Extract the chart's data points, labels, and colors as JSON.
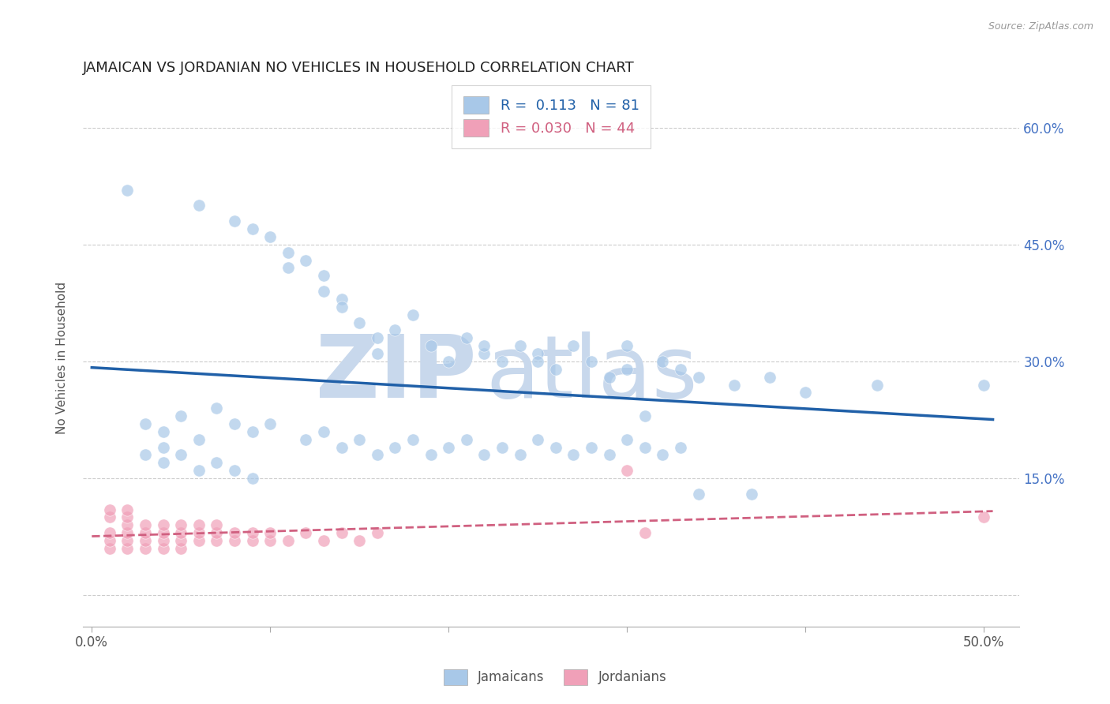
{
  "title": "JAMAICAN VS JORDANIAN NO VEHICLES IN HOUSEHOLD CORRELATION CHART",
  "source_text": "Source: ZipAtlas.com",
  "ylabel": "No Vehicles in Household",
  "xlim": [
    -0.005,
    0.52
  ],
  "ylim": [
    -0.04,
    0.65
  ],
  "y_ticks_right": [
    0.0,
    0.15,
    0.3,
    0.45,
    0.6
  ],
  "y_tick_labels_right": [
    "",
    "15.0%",
    "30.0%",
    "45.0%",
    "60.0%"
  ],
  "x_ticks": [
    0.0,
    0.1,
    0.2,
    0.3,
    0.4,
    0.5
  ],
  "x_tick_labels": [
    "0.0%",
    "",
    "",
    "",
    "",
    "50.0%"
  ],
  "r_jamaican": 0.113,
  "n_jamaican": 81,
  "r_jordanian": 0.03,
  "n_jordanian": 44,
  "color_jamaican": "#A8C8E8",
  "color_jordanian": "#F0A0B8",
  "color_line_jamaican": "#2060A8",
  "color_line_jordanian": "#D06080",
  "legend_label_jamaican": "Jamaicans",
  "legend_label_jordanian": "Jordanians",
  "watermark_zip": "ZIP",
  "watermark_atlas": "atlas",
  "watermark_color": "#C8D8EC",
  "background_color": "#FFFFFF",
  "grid_color": "#CCCCCC",
  "jamaican_x": [
    0.02,
    0.06,
    0.08,
    0.09,
    0.1,
    0.11,
    0.11,
    0.12,
    0.13,
    0.13,
    0.14,
    0.14,
    0.15,
    0.16,
    0.16,
    0.17,
    0.18,
    0.19,
    0.2,
    0.21,
    0.22,
    0.22,
    0.23,
    0.24,
    0.25,
    0.25,
    0.26,
    0.27,
    0.28,
    0.29,
    0.3,
    0.3,
    0.32,
    0.33,
    0.34,
    0.36,
    0.38,
    0.4,
    0.44,
    0.5,
    0.03,
    0.04,
    0.05,
    0.06,
    0.07,
    0.08,
    0.09,
    0.1,
    0.12,
    0.13,
    0.14,
    0.15,
    0.16,
    0.17,
    0.18,
    0.19,
    0.2,
    0.21,
    0.22,
    0.23,
    0.24,
    0.25,
    0.26,
    0.27,
    0.28,
    0.29,
    0.3,
    0.31,
    0.32,
    0.33,
    0.03,
    0.04,
    0.04,
    0.05,
    0.06,
    0.07,
    0.08,
    0.09,
    0.31,
    0.34,
    0.37
  ],
  "jamaican_y": [
    0.52,
    0.5,
    0.48,
    0.47,
    0.46,
    0.44,
    0.42,
    0.43,
    0.41,
    0.39,
    0.38,
    0.37,
    0.35,
    0.33,
    0.31,
    0.34,
    0.36,
    0.32,
    0.3,
    0.33,
    0.31,
    0.32,
    0.3,
    0.32,
    0.31,
    0.3,
    0.29,
    0.32,
    0.3,
    0.28,
    0.29,
    0.32,
    0.3,
    0.29,
    0.28,
    0.27,
    0.28,
    0.26,
    0.27,
    0.27,
    0.22,
    0.21,
    0.23,
    0.2,
    0.24,
    0.22,
    0.21,
    0.22,
    0.2,
    0.21,
    0.19,
    0.2,
    0.18,
    0.19,
    0.2,
    0.18,
    0.19,
    0.2,
    0.18,
    0.19,
    0.18,
    0.2,
    0.19,
    0.18,
    0.19,
    0.18,
    0.2,
    0.19,
    0.18,
    0.19,
    0.18,
    0.19,
    0.17,
    0.18,
    0.16,
    0.17,
    0.16,
    0.15,
    0.23,
    0.13,
    0.13
  ],
  "jordanian_x": [
    0.01,
    0.01,
    0.01,
    0.01,
    0.02,
    0.02,
    0.02,
    0.02,
    0.02,
    0.03,
    0.03,
    0.03,
    0.03,
    0.04,
    0.04,
    0.04,
    0.04,
    0.05,
    0.05,
    0.05,
    0.05,
    0.06,
    0.06,
    0.06,
    0.07,
    0.07,
    0.07,
    0.08,
    0.08,
    0.09,
    0.09,
    0.1,
    0.1,
    0.11,
    0.12,
    0.13,
    0.14,
    0.15,
    0.16,
    0.3,
    0.31,
    0.5,
    0.01,
    0.02
  ],
  "jordanian_y": [
    0.06,
    0.07,
    0.08,
    0.1,
    0.06,
    0.07,
    0.08,
    0.09,
    0.1,
    0.06,
    0.07,
    0.08,
    0.09,
    0.06,
    0.07,
    0.08,
    0.09,
    0.06,
    0.07,
    0.08,
    0.09,
    0.07,
    0.08,
    0.09,
    0.07,
    0.08,
    0.09,
    0.07,
    0.08,
    0.07,
    0.08,
    0.07,
    0.08,
    0.07,
    0.08,
    0.07,
    0.08,
    0.07,
    0.08,
    0.16,
    0.08,
    0.1,
    0.11,
    0.11
  ]
}
